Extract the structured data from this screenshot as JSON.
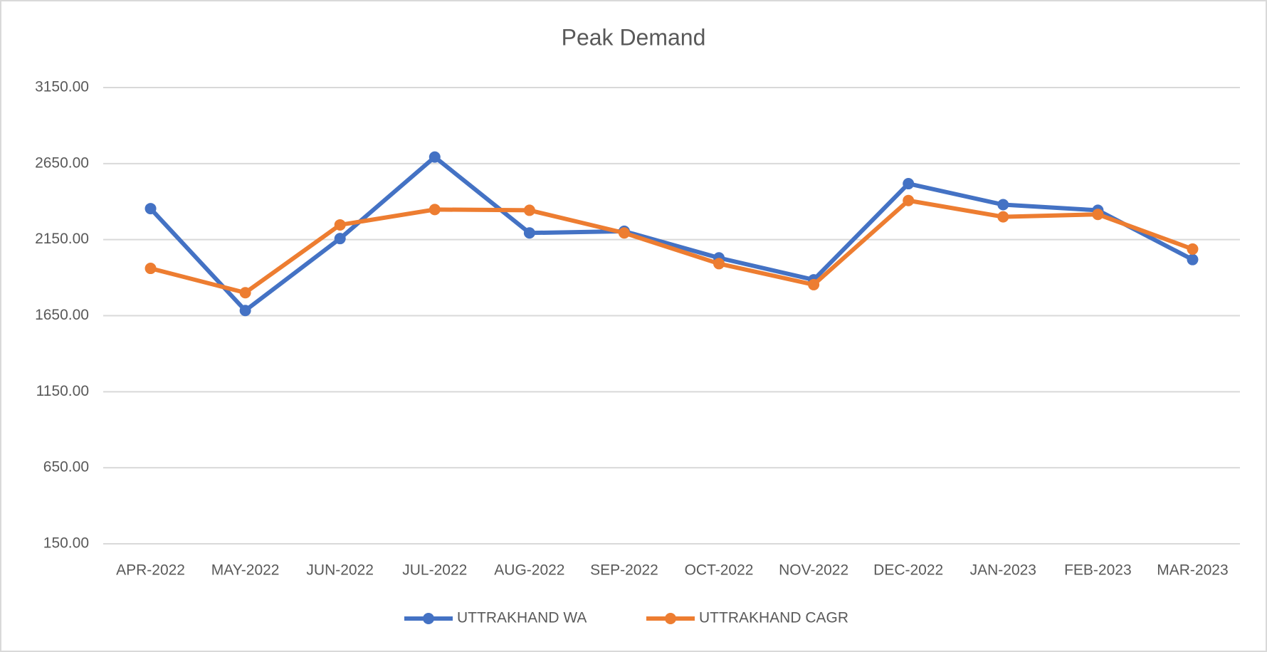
{
  "chart_data": {
    "type": "line",
    "title": "Peak Demand",
    "categories": [
      "APR-2022",
      "MAY-2022",
      "JUN-2022",
      "JUL-2022",
      "AUG-2022",
      "SEP-2022",
      "OCT-2022",
      "NOV-2022",
      "DEC-2022",
      "JAN-2023",
      "FEB-2023",
      "MAR-2023"
    ],
    "series": [
      {
        "name": "UTTRAKHAND WA",
        "color": "#4472c4",
        "values": [
          2354,
          1684,
          2157,
          2693,
          2194,
          2205,
          2030,
          1886,
          2518,
          2380,
          2343,
          2019
        ]
      },
      {
        "name": "UTTRAKHAND CAGR",
        "color": "#ed7d31",
        "values": [
          1961,
          1801,
          2247,
          2348,
          2343,
          2194,
          1992,
          1854,
          2407,
          2300,
          2316,
          2088
        ]
      }
    ],
    "ylim": [
      150,
      3150
    ],
    "yticks": [
      {
        "value": 150,
        "label": "150.00"
      },
      {
        "value": 650,
        "label": "650.00"
      },
      {
        "value": 1150,
        "label": "1150.00"
      },
      {
        "value": 1650,
        "label": "1650.00"
      },
      {
        "value": 2150,
        "label": "2150.00"
      },
      {
        "value": 2650,
        "label": "2650.00"
      },
      {
        "value": 3150,
        "label": "3150.00"
      }
    ],
    "grid": true,
    "legend": "bottom"
  }
}
